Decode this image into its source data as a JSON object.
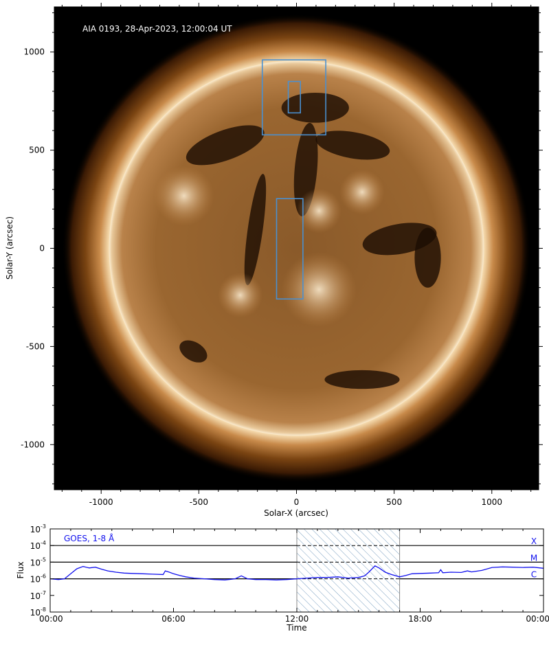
{
  "colors": {
    "goes": "#1010ee",
    "box": "#4a90d0",
    "hatch": "#7a9fc0",
    "annotation": "#ffffff"
  },
  "chart_data": [
    {
      "type": "image",
      "annotation": "AIA 0193, 28-Apr-2023, 12:00:04 UT",
      "xlabel": "Solar-X (arcsec)",
      "ylabel": "Solar-Y (arcsec)",
      "xlim": [
        -1240,
        1240
      ],
      "ylim": [
        -1230,
        1230
      ],
      "xticks": [
        -1000,
        -500,
        0,
        500,
        1000
      ],
      "yticks": [
        -1000,
        -500,
        0,
        500,
        1000
      ],
      "xtick_labels": [
        "-1000",
        "-500",
        "0",
        "500",
        "1000"
      ],
      "ytick_labels": [
        "-1000",
        "-500",
        "0",
        "500",
        "1000"
      ],
      "disk_radius": 960,
      "grid": false,
      "boxes": [
        {
          "x0": -175,
          "x1": 150,
          "y0": 578,
          "y1": 960
        },
        {
          "x0": -42,
          "x1": 20,
          "y0": 690,
          "y1": 850
        },
        {
          "x0": -102,
          "x1": 33,
          "y0": -258,
          "y1": 253
        }
      ]
    },
    {
      "type": "line",
      "annotation": "GOES, 1-8 Å",
      "xlabel": "Time",
      "ylabel": "Flux",
      "scale_y": "log",
      "xlim": [
        0,
        24
      ],
      "ylim": [
        1e-08,
        0.001
      ],
      "xtick_labels": [
        "00:00",
        "06:00",
        "12:00",
        "18:00",
        "00:00"
      ],
      "xticks": [
        0,
        6,
        12,
        18,
        24
      ],
      "ytick_labels": [
        {
          "base": "10",
          "exp": "-8"
        },
        {
          "base": "10",
          "exp": "-7"
        },
        {
          "base": "10",
          "exp": "-6"
        },
        {
          "base": "10",
          "exp": "-5"
        },
        {
          "base": "10",
          "exp": "-4"
        },
        {
          "base": "10",
          "exp": "-3"
        }
      ],
      "class_levels": [
        {
          "label": "X",
          "flux": 0.0001
        },
        {
          "label": "M",
          "flux": 1e-05
        },
        {
          "label": "C",
          "flux": 1e-06
        }
      ],
      "shaded_interval": [
        12,
        17
      ],
      "series": [
        {
          "x": [
            0,
            0.4,
            0.7,
            1.0,
            1.3,
            1.6,
            1.9,
            2.2,
            2.5,
            2.8,
            3.2,
            3.6,
            4.0,
            4.5,
            5.0,
            5.5,
            5.6,
            5.8,
            6.0,
            6.3,
            6.6,
            7.0,
            7.5,
            8.0,
            8.5,
            9.0,
            9.3,
            9.6,
            10.0,
            10.5,
            11.0,
            11.5,
            12.0,
            12.5,
            13.0,
            13.5,
            14.0,
            14.5,
            15.0,
            15.3,
            15.5,
            15.8,
            16.0,
            16.3,
            16.6,
            17.0,
            17.3,
            17.6,
            18.0,
            18.5,
            18.9,
            19.0,
            19.1,
            19.5,
            20.0,
            20.3,
            20.5,
            21.0,
            21.5,
            22.0,
            22.5,
            23.0,
            23.5,
            24.0
          ],
          "y": [
            1e-06,
            9e-07,
            1e-06,
            2e-06,
            4e-06,
            5.5e-06,
            4.5e-06,
            5e-06,
            3.8e-06,
            3e-06,
            2.5e-06,
            2.2e-06,
            2.1e-06,
            2e-06,
            1.9e-06,
            1.8e-06,
            3e-06,
            2.5e-06,
            2e-06,
            1.6e-06,
            1.3e-06,
            1.1e-06,
            1e-06,
            9e-07,
            8.5e-07,
            1e-06,
            1.5e-06,
            1e-06,
            9e-07,
            9e-07,
            8.5e-07,
            9e-07,
            1e-06,
            1.1e-06,
            1.2e-06,
            1.2e-06,
            1.3e-06,
            1.1e-06,
            1.2e-06,
            1.5e-06,
            2.5e-06,
            6e-06,
            4.5e-06,
            2.5e-06,
            1.8e-06,
            1.3e-06,
            1.6e-06,
            2e-06,
            2.1e-06,
            2.2e-06,
            2.3e-06,
            3.5e-06,
            2.3e-06,
            2.5e-06,
            2.4e-06,
            3e-06,
            2.6e-06,
            3.2e-06,
            4.8e-06,
            5.2e-06,
            5e-06,
            4.8e-06,
            5e-06,
            4.3e-06
          ]
        }
      ]
    }
  ]
}
